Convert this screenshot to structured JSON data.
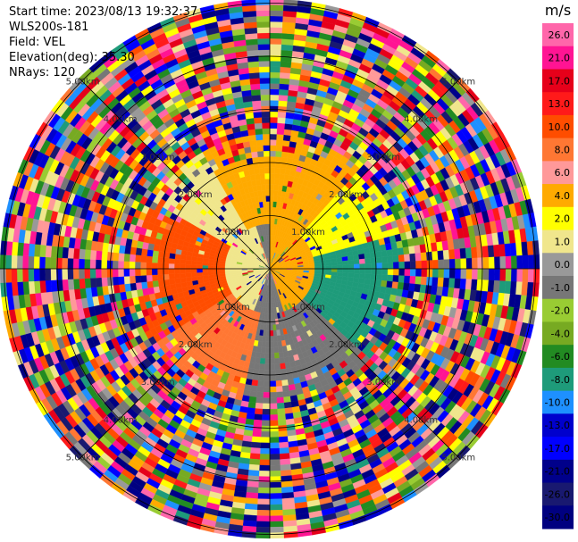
{
  "header": {
    "start_time": "Start time: 2023/08/13 19:32:37",
    "instrument": "WLS200s-181",
    "field": "Field: VEL",
    "elevation": "Elevation(deg): 35.30",
    "nrays": "NRays: 120"
  },
  "chart_data": {
    "type": "heatmap",
    "projection": "polar PPI scan",
    "field": "VEL",
    "unit": "m/s",
    "n_rays": 120,
    "range_ring_labels": [
      "1.00km",
      "2.00km",
      "3.00km",
      "4.00km",
      "5.00km"
    ],
    "colorbar": {
      "unit": "m/s",
      "ticks": [
        "26.0",
        "21.0",
        "17.0",
        "13.0",
        "10.0",
        "8.0",
        "6.0",
        "4.0",
        "2.0",
        "1.0",
        "0.0",
        "-1.0",
        "-2.0",
        "-4.0",
        "-6.0",
        "-8.0",
        "-10.0",
        "-13.0",
        "-17.0",
        "-21.0",
        "-26.0",
        "-30.0"
      ],
      "colors": [
        "#ff66aa",
        "#ff1493",
        "#e6001a",
        "#ff1a1a",
        "#ff4d00",
        "#ff7733",
        "#ff9999",
        "#ffaa00",
        "#ffff00",
        "#f0e68c",
        "#999999",
        "#777777",
        "#99cc33",
        "#77aa22",
        "#228b22",
        "#1e9b7a",
        "#1e90ff",
        "#0000cd",
        "#0000ff",
        "#00008b",
        "#191970",
        "#000080"
      ]
    },
    "sectors": [
      {
        "region": "north-center",
        "value": 2.0
      },
      {
        "region": "north-east",
        "value": 1.0
      },
      {
        "region": "west",
        "value": 8.0
      },
      {
        "region": "south-west",
        "value": 6.0
      },
      {
        "region": "south",
        "value": -2.0
      },
      {
        "region": "east",
        "value": -10.0
      },
      {
        "region": "center-west",
        "value": 0.0
      }
    ],
    "outer_noise": true
  }
}
